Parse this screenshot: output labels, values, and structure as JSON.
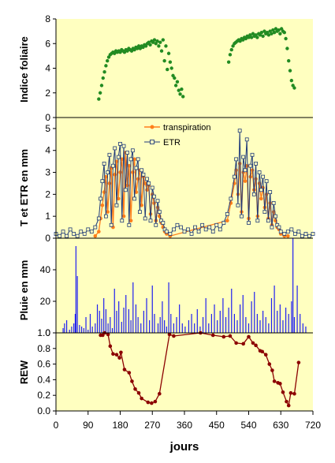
{
  "colors": {
    "panel_bg": "#ffffc0",
    "leaf_green": "#228b22",
    "transpiration_orange": "#ff7f1a",
    "etr_navy": "#1f3a7a",
    "rain_blue": "#1f1ff0",
    "rew_red": "#8b0000"
  },
  "chart_data": [
    {
      "id": "lai",
      "type": "scatter",
      "title": "",
      "ylabel": "Indice foliaire",
      "ylim": [
        0,
        8
      ],
      "yticks": [
        0,
        2,
        4,
        6,
        8
      ],
      "xlim": [
        0,
        720
      ],
      "series": [
        {
          "color": "#228b22",
          "x": [
            120,
            124,
            128,
            132,
            136,
            140,
            144,
            148,
            152,
            156,
            160,
            164,
            168,
            172,
            176,
            180,
            184,
            188,
            192,
            196,
            200,
            204,
            208,
            212,
            216,
            220,
            224,
            228,
            232,
            236,
            240,
            244,
            248,
            252,
            256,
            260,
            264,
            268,
            272,
            276,
            280,
            284,
            288,
            292,
            296,
            300,
            304,
            308,
            312,
            316,
            320,
            324,
            328,
            332,
            336,
            340,
            344,
            348,
            352,
            356,
            484,
            488,
            492,
            496,
            500,
            504,
            508,
            512,
            516,
            520,
            524,
            528,
            532,
            536,
            540,
            544,
            548,
            552,
            556,
            560,
            564,
            568,
            572,
            576,
            580,
            584,
            588,
            592,
            596,
            600,
            604,
            608,
            612,
            616,
            620,
            624,
            628,
            632,
            636,
            640,
            644,
            648,
            652,
            656,
            660,
            664,
            668
          ],
          "y": [
            1.5,
            2.0,
            2.6,
            3.2,
            3.7,
            4.2,
            4.6,
            4.9,
            5.1,
            5.2,
            5.3,
            5.2,
            5.4,
            5.3,
            5.4,
            5.3,
            5.5,
            5.4,
            5.3,
            5.5,
            5.4,
            5.6,
            5.5,
            5.4,
            5.6,
            5.5,
            5.7,
            5.6,
            5.8,
            5.6,
            5.8,
            5.7,
            5.9,
            5.8,
            6.0,
            6.1,
            5.9,
            6.2,
            6.1,
            6.3,
            6.0,
            6.2,
            5.8,
            6.1,
            5.4,
            6.3,
            4.6,
            5.8,
            3.9,
            5.2,
            4.5,
            4.0,
            3.4,
            3.2,
            2.6,
            2.9,
            2.2,
            1.9,
            2.3,
            1.7,
            4.5,
            5.1,
            5.5,
            5.8,
            6.0,
            6.1,
            6.2,
            6.3,
            6.2,
            6.4,
            6.3,
            6.5,
            6.4,
            6.6,
            6.5,
            6.7,
            6.5,
            6.8,
            6.6,
            6.7,
            6.5,
            6.8,
            6.7,
            6.9,
            6.6,
            7.0,
            6.8,
            6.9,
            6.7,
            7.0,
            6.8,
            7.1,
            6.9,
            7.2,
            7.0,
            7.1,
            6.8,
            7.2,
            7.0,
            6.9,
            6.4,
            5.6,
            4.6,
            3.8,
            3.0,
            2.6,
            2.4
          ]
        }
      ]
    },
    {
      "id": "transp-etr",
      "type": "line",
      "title": "",
      "ylabel": "T et ETR en mm",
      "ylim": [
        0,
        5.5
      ],
      "yticks": [
        0,
        1,
        2,
        3,
        4,
        5
      ],
      "xlim": [
        0,
        720
      ],
      "series": [
        {
          "name": "transpiration",
          "color": "#ff7f1a",
          "marker": "filled-circle",
          "x": [
            110,
            120,
            125,
            130,
            135,
            140,
            145,
            150,
            155,
            160,
            165,
            170,
            175,
            180,
            185,
            190,
            195,
            200,
            205,
            210,
            215,
            220,
            225,
            230,
            235,
            240,
            245,
            250,
            255,
            260,
            265,
            270,
            275,
            280,
            285,
            290,
            295,
            300,
            305,
            310,
            320,
            480,
            490,
            500,
            505,
            510,
            515,
            520,
            525,
            530,
            535,
            540,
            545,
            550,
            555,
            560,
            565,
            570,
            575,
            580,
            585,
            590,
            595,
            600,
            605,
            610,
            615,
            620,
            625,
            630,
            640,
            650
          ],
          "y": [
            0.1,
            0.3,
            0.9,
            1.5,
            2.1,
            2.8,
            1.2,
            2.5,
            3.2,
            0.5,
            2.9,
            3.5,
            1.8,
            3.0,
            3.6,
            1.0,
            3.9,
            2.4,
            3.3,
            0.8,
            3.0,
            3.6,
            2.1,
            2.7,
            3.1,
            1.5,
            2.8,
            2.5,
            2.2,
            2.4,
            1.1,
            2.0,
            1.6,
            0.8,
            1.4,
            1.0,
            0.7,
            0.5,
            0.3,
            0.2,
            0.1,
            0.8,
            1.6,
            2.5,
            3.1,
            2.0,
            3.4,
            1.2,
            3.0,
            2.6,
            3.3,
            0.9,
            2.8,
            3.1,
            2.2,
            2.7,
            1.0,
            2.5,
            1.8,
            2.3,
            1.4,
            2.0,
            0.9,
            1.6,
            0.6,
            1.2,
            0.8,
            0.5,
            0.4,
            0.2,
            0.1,
            0.1
          ]
        },
        {
          "name": "ETR",
          "color": "#1f3a7a",
          "marker": "open-square",
          "x": [
            0,
            10,
            20,
            30,
            40,
            50,
            60,
            70,
            80,
            90,
            100,
            110,
            120,
            125,
            130,
            135,
            140,
            145,
            150,
            155,
            160,
            165,
            170,
            175,
            180,
            185,
            190,
            195,
            200,
            205,
            210,
            215,
            220,
            225,
            230,
            235,
            240,
            245,
            250,
            255,
            260,
            265,
            270,
            275,
            280,
            285,
            290,
            295,
            300,
            305,
            310,
            320,
            330,
            340,
            350,
            360,
            370,
            380,
            390,
            400,
            410,
            420,
            430,
            440,
            450,
            460,
            470,
            480,
            490,
            500,
            505,
            510,
            515,
            520,
            525,
            530,
            535,
            540,
            545,
            550,
            555,
            560,
            565,
            570,
            575,
            580,
            585,
            590,
            595,
            600,
            605,
            610,
            615,
            620,
            625,
            630,
            640,
            650,
            660,
            670,
            680,
            690,
            700,
            710,
            720
          ],
          "y": [
            0.2,
            0.1,
            0.3,
            0.1,
            0.4,
            0.2,
            0.1,
            0.3,
            0.2,
            0.4,
            0.3,
            0.5,
            0.9,
            1.8,
            2.6,
            3.4,
            1.0,
            3.0,
            3.8,
            0.6,
            3.3,
            4.1,
            1.5,
            3.7,
            4.3,
            0.8,
            4.2,
            2.2,
            3.9,
            0.6,
            3.6,
            4.0,
            1.8,
            3.2,
            3.6,
            1.2,
            3.1,
            2.9,
            0.9,
            2.7,
            2.5,
            0.8,
            2.3,
            1.9,
            0.6,
            1.7,
            1.2,
            0.8,
            0.7,
            0.4,
            0.3,
            0.2,
            0.4,
            0.6,
            0.5,
            0.3,
            0.4,
            0.2,
            0.5,
            0.3,
            0.6,
            0.4,
            0.5,
            0.3,
            0.6,
            0.4,
            0.7,
            1.1,
            1.8,
            2.8,
            3.6,
            1.5,
            4.9,
            1.0,
            3.7,
            3.1,
            4.5,
            0.7,
            3.3,
            3.8,
            2.0,
            3.4,
            0.8,
            3.0,
            2.2,
            2.8,
            1.2,
            2.6,
            0.8,
            2.1,
            0.5,
            1.6,
            1.0,
            0.6,
            0.5,
            0.3,
            0.2,
            0.3,
            0.4,
            0.2,
            0.3,
            0.1,
            0.2,
            0.1,
            0.2
          ]
        }
      ]
    },
    {
      "id": "pluie",
      "type": "bar",
      "title": "",
      "ylabel": "Pluie en mm",
      "ylim": [
        0,
        60
      ],
      "yticks": [
        0,
        20,
        40
      ],
      "xlim": [
        0,
        720
      ],
      "series": [
        {
          "color": "#1f1ff0",
          "x": [
            20,
            24,
            30,
            38,
            44,
            50,
            54,
            56,
            60,
            66,
            72,
            78,
            84,
            90,
            96,
            102,
            110,
            116,
            122,
            128,
            134,
            140,
            146,
            152,
            158,
            164,
            170,
            176,
            184,
            190,
            196,
            204,
            210,
            216,
            224,
            230,
            238,
            246,
            254,
            262,
            270,
            276,
            286,
            292,
            298,
            304,
            310,
            316,
            322,
            330,
            338,
            346,
            354,
            362,
            372,
            380,
            388,
            396,
            404,
            412,
            420,
            428,
            436,
            444,
            452,
            460,
            468,
            476,
            484,
            492,
            500,
            508,
            516,
            524,
            532,
            540,
            548,
            556,
            564,
            572,
            580,
            588,
            596,
            604,
            612,
            620,
            628,
            636,
            644,
            652,
            660,
            664,
            668,
            676,
            684,
            692,
            700
          ],
          "y": [
            3,
            6,
            8,
            2,
            4,
            6,
            12,
            55,
            36,
            5,
            4,
            3,
            10,
            2,
            12,
            4,
            6,
            18,
            14,
            9,
            22,
            15,
            6,
            10,
            3,
            28,
            14,
            20,
            7,
            16,
            24,
            15,
            8,
            32,
            18,
            10,
            6,
            14,
            22,
            8,
            30,
            12,
            6,
            10,
            20,
            8,
            4,
            32,
            12,
            6,
            10,
            18,
            6,
            4,
            8,
            12,
            6,
            15,
            4,
            10,
            22,
            6,
            12,
            18,
            8,
            14,
            22,
            10,
            16,
            28,
            12,
            8,
            18,
            24,
            10,
            6,
            20,
            26,
            12,
            8,
            14,
            10,
            6,
            22,
            30,
            14,
            18,
            8,
            16,
            12,
            20,
            60,
            10,
            30,
            12,
            6,
            4
          ]
        }
      ]
    },
    {
      "id": "rew",
      "type": "line",
      "title": "",
      "ylabel": "REW",
      "xlabel": "jours",
      "ylim": [
        0,
        1.0
      ],
      "yticks": [
        0.0,
        0.2,
        0.4,
        0.6,
        0.8,
        1.0
      ],
      "xlim": [
        0,
        720
      ],
      "xticks": [
        0,
        90,
        180,
        270,
        360,
        450,
        540,
        630,
        720
      ],
      "series": [
        {
          "color": "#8b0000",
          "marker": "filled-circle",
          "x": [
            125,
            131,
            136,
            146,
            152,
            160,
            170,
            178,
            182,
            192,
            205,
            213,
            222,
            232,
            240,
            258,
            268,
            278,
            290,
            318,
            330,
            405,
            440,
            470,
            488,
            505,
            525,
            540,
            552,
            560,
            572,
            578,
            588,
            598,
            606,
            612,
            622,
            628,
            636,
            646,
            652,
            658,
            668,
            680
          ],
          "y": [
            0.97,
            0.97,
            1.0,
            0.98,
            0.83,
            0.73,
            0.72,
            0.68,
            0.75,
            0.53,
            0.49,
            0.38,
            0.28,
            0.23,
            0.16,
            0.11,
            0.1,
            0.12,
            0.22,
            0.98,
            0.96,
            1.0,
            0.97,
            0.95,
            0.96,
            0.87,
            0.86,
            0.95,
            0.87,
            0.84,
            0.77,
            0.76,
            0.72,
            0.6,
            0.52,
            0.38,
            0.36,
            0.35,
            0.24,
            0.12,
            0.07,
            0.23,
            0.22,
            0.62
          ]
        }
      ]
    }
  ]
}
